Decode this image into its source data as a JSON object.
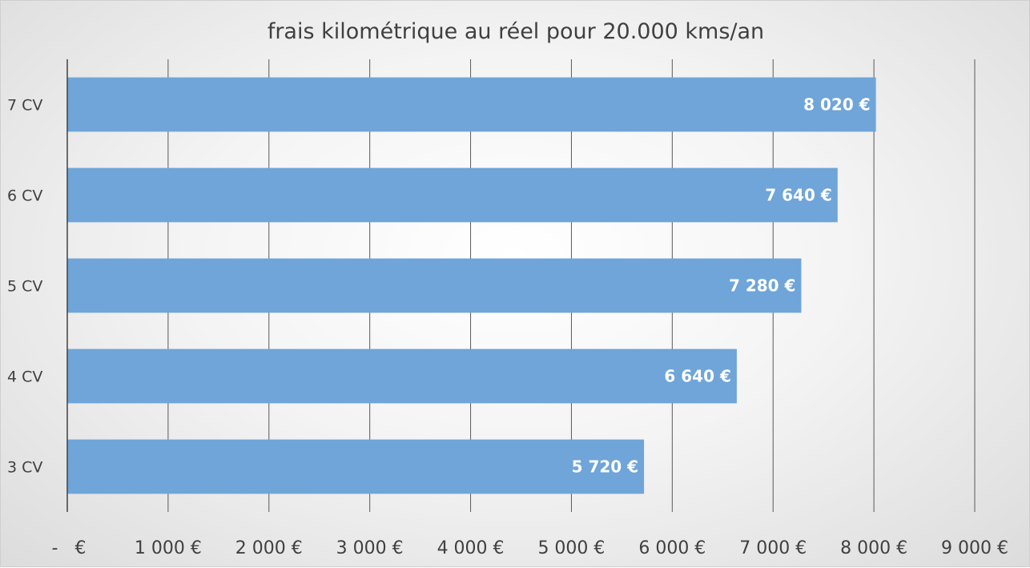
{
  "chart_data": {
    "type": "bar",
    "orientation": "horizontal",
    "title": "frais kilométrique au réel pour 20.000 kms/an",
    "categories": [
      "3 CV",
      "4 CV",
      "5 CV",
      "6 CV",
      "7 CV"
    ],
    "values": [
      5720,
      6640,
      7280,
      7640,
      8020
    ],
    "data_labels": [
      "5 720 €",
      "6 640 €",
      "7 280 €",
      "7 640 €",
      "8 020 €"
    ],
    "xlim": [
      0,
      9000
    ],
    "x_ticks": [
      0,
      1000,
      2000,
      3000,
      4000,
      5000,
      6000,
      7000,
      8000,
      9000
    ],
    "x_tick_labels": [
      "-   €",
      "1 000 €",
      "2 000 €",
      "3 000 €",
      "4 000 €",
      "5 000 €",
      "6 000 €",
      "7 000 €",
      "8 000 €",
      "9 000 €"
    ],
    "grid": true,
    "legend": "none",
    "bar_color": "#6fa5d8"
  }
}
